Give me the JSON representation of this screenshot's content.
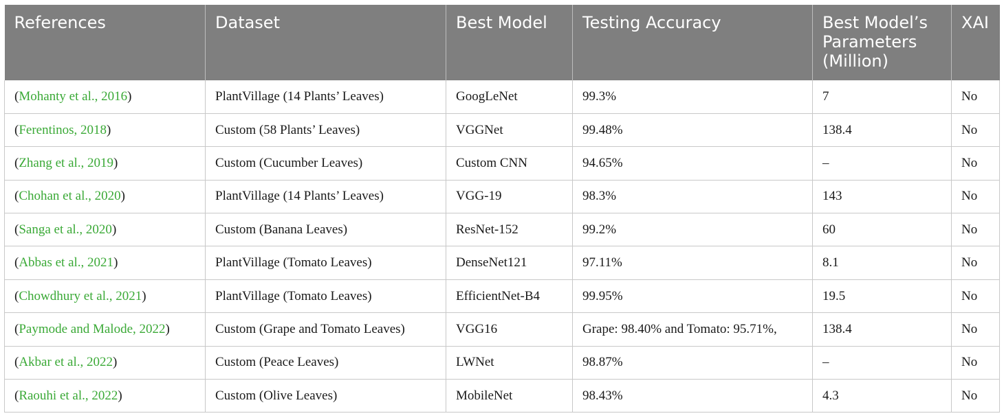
{
  "colors": {
    "header_bg": "#7f7f7f",
    "header_text": "#ffffff",
    "reference_link": "#3aa936"
  },
  "headers": [
    "References",
    "Dataset",
    "Best Model",
    "Testing Accuracy",
    "Best Model’s Parameters (Million)",
    "XAI"
  ],
  "rows": [
    {
      "ref_open": "(",
      "ref": "Mohanty et al., 2016",
      "ref_close": ")",
      "dataset": "PlantVillage (14 Plants’ Leaves)",
      "model": "GoogLeNet",
      "accuracy": "99.3%",
      "params": "7",
      "xai": "No"
    },
    {
      "ref_open": "(",
      "ref": "Ferentinos, 2018",
      "ref_close": ")",
      "dataset": "Custom (58 Plants’ Leaves)",
      "model": "VGGNet",
      "accuracy": "99.48%",
      "params": "138.4",
      "xai": "No"
    },
    {
      "ref_open": "(",
      "ref": "Zhang et al., 2019",
      "ref_close": ")",
      "dataset": "Custom (Cucumber Leaves)",
      "model": "Custom CNN",
      "accuracy": "94.65%",
      "params": "–",
      "xai": "No"
    },
    {
      "ref_open": "(",
      "ref": "Chohan et al., 2020",
      "ref_close": ")",
      "dataset": "PlantVillage (14 Plants’ Leaves)",
      "model": "VGG-19",
      "accuracy": "98.3%",
      "params": "143",
      "xai": "No"
    },
    {
      "ref_open": "(",
      "ref": "Sanga et al., 2020",
      "ref_close": ")",
      "dataset": "Custom (Banana Leaves)",
      "model": "ResNet-152",
      "accuracy": "99.2%",
      "params": "60",
      "xai": "No"
    },
    {
      "ref_open": "(",
      "ref": "Abbas et al., 2021",
      "ref_close": ")",
      "dataset": "PlantVillage (Tomato Leaves)",
      "model": "DenseNet121",
      "accuracy": "97.11%",
      "params": "8.1",
      "xai": "No"
    },
    {
      "ref_open": "(",
      "ref": "Chowdhury et al., 2021",
      "ref_close": ")",
      "dataset": "PlantVillage (Tomato Leaves)",
      "model": "EfficientNet-B4",
      "accuracy": "99.95%",
      "params": "19.5",
      "xai": "No"
    },
    {
      "ref_open": "(",
      "ref": "Paymode and Malode, 2022",
      "ref_close": ")",
      "dataset": "Custom (Grape and Tomato Leaves)",
      "model": "VGG16",
      "accuracy": "Grape: 98.40% and Tomato: 95.71%,",
      "params": "138.4",
      "xai": "No"
    },
    {
      "ref_open": "(",
      "ref": "Akbar et al., 2022",
      "ref_close": ")",
      "dataset": "Custom (Peace Leaves)",
      "model": "LWNet",
      "accuracy": "98.87%",
      "params": "–",
      "xai": "No"
    },
    {
      "ref_open": "(",
      "ref": "Raouhi et al., 2022",
      "ref_close": ")",
      "dataset": "Custom (Olive Leaves)",
      "model": "MobileNet",
      "accuracy": "98.43%",
      "params": "4.3",
      "xai": "No"
    }
  ]
}
